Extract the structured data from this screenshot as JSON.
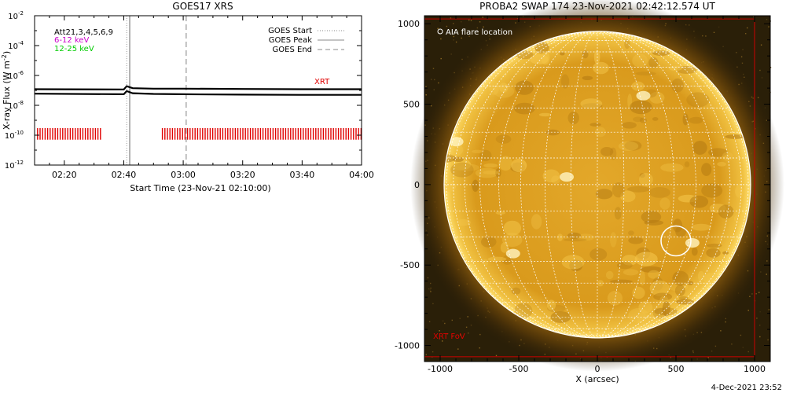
{
  "chart_data": [
    {
      "type": "line",
      "title": "GOES17 XRS",
      "xlabel": "Start Time (23-Nov-21 02:10:00)",
      "ylabel": "X-ray Flux (W m",
      "ylabel_exp": "-2",
      "ylabel_close": ")",
      "y_scale": "log",
      "xlim": [
        "02:10",
        "04:00"
      ],
      "ylim": [
        1e-12,
        0.01
      ],
      "x_ticks": [
        "02:20",
        "02:40",
        "03:00",
        "03:20",
        "03:40",
        "04:00"
      ],
      "y_ticks": [
        {
          "base": "10",
          "exp": "-2"
        },
        {
          "base": "10",
          "exp": "-4"
        },
        {
          "base": "10",
          "exp": "-6"
        },
        {
          "base": "10",
          "exp": "-8"
        },
        {
          "base": "10",
          "exp": "-10"
        },
        {
          "base": "10",
          "exp": "-12"
        }
      ],
      "legend_left": {
        "position": "top-left",
        "items": [
          {
            "label": "Att21,3,4,5,6,9",
            "color": "#000000"
          },
          {
            "label": "6-12 keV",
            "color": "#cc00cc"
          },
          {
            "label": "12-25 keV",
            "color": "#00cc00"
          }
        ]
      },
      "legend_right": {
        "position": "top-right",
        "items": [
          {
            "label": "GOES Start",
            "style": "dotted"
          },
          {
            "label": "GOES Peak",
            "style": "solid"
          },
          {
            "label": "GOES End",
            "style": "dashed"
          }
        ]
      },
      "xrt_label": "XRT",
      "series": [
        {
          "x": [
            "02:10",
            "02:40",
            "02:41",
            "02:43",
            "02:50",
            "03:00",
            "03:20",
            "03:40",
            "04:00"
          ],
          "y": [
            1.2e-07,
            1.15e-07,
            1.9e-07,
            1.4e-07,
            1.3e-07,
            1.3e-07,
            1.25e-07,
            1.2e-07,
            1.2e-07
          ],
          "color": "#000000"
        },
        {
          "x": [
            "02:10",
            "02:40",
            "02:41",
            "02:43",
            "02:50",
            "03:00",
            "03:20",
            "03:40",
            "04:00"
          ],
          "y": [
            6e-08,
            5.5e-08,
            9e-08,
            6.5e-08,
            5.8e-08,
            5.5e-08,
            5.2e-08,
            5e-08,
            5e-08
          ],
          "color": "#000000"
        }
      ],
      "goes_events": {
        "start": "02:41",
        "peak": "02:42",
        "end": "03:01"
      },
      "xrt_observations": [
        {
          "from": "02:11",
          "to": "02:33"
        },
        {
          "from": "02:53",
          "to": "04:00"
        }
      ]
    },
    {
      "type": "image",
      "title": "PROBA2 SWAP 174 23-Nov-2021 02:42:12.574 UT",
      "xlabel": "X (arcsec)",
      "xlim": [
        -1100,
        1100
      ],
      "ylim": [
        -1100,
        1050
      ],
      "x_ticks": [
        "-1000",
        "-500",
        "0",
        "500",
        "1000"
      ],
      "y_ticks": [
        "1000",
        "500",
        "0",
        "-500",
        "-1000"
      ],
      "legend": "AIA flare location",
      "fov_label": "XRT FoV",
      "xrt_fov": {
        "x": [
          -1100,
          1000
        ],
        "y": [
          -1070,
          1030
        ]
      },
      "solar_radius_arcsec": 975,
      "flare_location": {
        "x": 500,
        "y": -350
      }
    }
  ],
  "footer": {
    "timestamp": "4-Dec-2021 23:52"
  },
  "colors": {
    "goes_flux": "#000000",
    "xrt_ticks": "#e00000",
    "xrt_fov": "#cc0000",
    "sun_body": "#e0a020",
    "grid": "#ffffff"
  }
}
